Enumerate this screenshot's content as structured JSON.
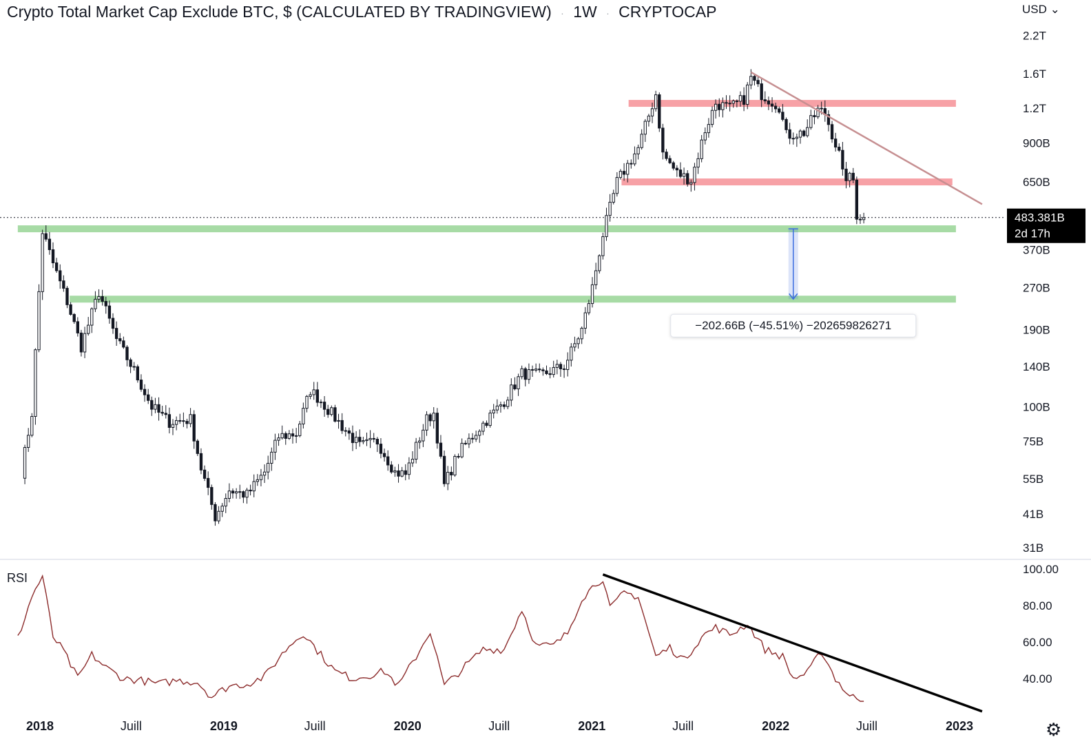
{
  "header": {
    "title": "Crypto Total Market Cap Exclude BTC, $ (CALCULATED BY TRADINGVIEW)",
    "separator": "·",
    "interval": "1W",
    "symbol": "CRYPTOCAP"
  },
  "currency_label": "USD",
  "colors": {
    "up": "#131722",
    "down": "#131722",
    "resistance": "#f7a1a6",
    "support": "#a7dba5",
    "trendline_price": "#c68f91",
    "rsi_line": "#8b2a2a",
    "rsi_trendline": "#000000",
    "measure": "#3b6ce0"
  },
  "price_label": {
    "value": "483.381B",
    "countdown": "2d 17h"
  },
  "measure_label": "−202.66B (−45.51%) −202659826271",
  "rsi_label": "RSI",
  "settings_icon": "gear-icon",
  "chart_data": [
    {
      "type": "candlestick",
      "title": "Crypto Total Market Cap Exclude BTC, $ (CALCULATED BY TRADINGVIEW)",
      "y_scale": "log",
      "y_unit": "B",
      "y_ticks": [
        {
          "label": "2.2T",
          "value": 2200
        },
        {
          "label": "1.6T",
          "value": 1600
        },
        {
          "label": "1.2T",
          "value": 1200
        },
        {
          "label": "900B",
          "value": 900
        },
        {
          "label": "650B",
          "value": 650
        },
        {
          "label": "370B",
          "value": 370
        },
        {
          "label": "270B",
          "value": 270
        },
        {
          "label": "190B",
          "value": 190
        },
        {
          "label": "140B",
          "value": 140
        },
        {
          "label": "100B",
          "value": 100
        },
        {
          "label": "75B",
          "value": 75
        },
        {
          "label": "55B",
          "value": 55
        },
        {
          "label": "41B",
          "value": 41
        },
        {
          "label": "31B",
          "value": 31
        }
      ],
      "x_ticks": [
        {
          "label": "2018",
          "value": "2018-01-01",
          "bold": true
        },
        {
          "label": "Juill",
          "value": "2018-07-01",
          "bold": false
        },
        {
          "label": "2019",
          "value": "2019-01-01",
          "bold": true
        },
        {
          "label": "Juill",
          "value": "2019-07-01",
          "bold": false
        },
        {
          "label": "2020",
          "value": "2020-01-01",
          "bold": true
        },
        {
          "label": "Juill",
          "value": "2020-07-01",
          "bold": false
        },
        {
          "label": "2021",
          "value": "2021-01-01",
          "bold": true
        },
        {
          "label": "Juill",
          "value": "2021-07-01",
          "bold": false
        },
        {
          "label": "2022",
          "value": "2022-01-01",
          "bold": true
        },
        {
          "label": "Juill",
          "value": "2022-07-01",
          "bold": false
        },
        {
          "label": "2023",
          "value": "2023-01-01",
          "bold": true
        }
      ],
      "series": [
        {
          "name": "CRYPTOCAP",
          "points": [
            {
              "x": "2017-11-25",
              "y": 58
            },
            {
              "x": "2017-12-16",
              "y": 95
            },
            {
              "x": "2018-01-06",
              "y": 430
            },
            {
              "x": "2018-01-27",
              "y": 330
            },
            {
              "x": "2018-02-24",
              "y": 240
            },
            {
              "x": "2018-03-24",
              "y": 165
            },
            {
              "x": "2018-04-28",
              "y": 260
            },
            {
              "x": "2018-06-02",
              "y": 175
            },
            {
              "x": "2018-07-07",
              "y": 135
            },
            {
              "x": "2018-08-11",
              "y": 100
            },
            {
              "x": "2018-09-15",
              "y": 88
            },
            {
              "x": "2018-10-27",
              "y": 90
            },
            {
              "x": "2018-11-17",
              "y": 60
            },
            {
              "x": "2018-12-15",
              "y": 40
            },
            {
              "x": "2019-01-12",
              "y": 50
            },
            {
              "x": "2019-02-16",
              "y": 48
            },
            {
              "x": "2019-03-23",
              "y": 58
            },
            {
              "x": "2019-04-20",
              "y": 78
            },
            {
              "x": "2019-05-25",
              "y": 80
            },
            {
              "x": "2019-06-22",
              "y": 115
            },
            {
              "x": "2019-07-13",
              "y": 105
            },
            {
              "x": "2019-08-24",
              "y": 85
            },
            {
              "x": "2019-09-28",
              "y": 72
            },
            {
              "x": "2019-11-02",
              "y": 75
            },
            {
              "x": "2019-12-07",
              "y": 58
            },
            {
              "x": "2019-12-28",
              "y": 57
            },
            {
              "x": "2020-02-08",
              "y": 90
            },
            {
              "x": "2020-02-22",
              "y": 95
            },
            {
              "x": "2020-03-14",
              "y": 52
            },
            {
              "x": "2020-04-11",
              "y": 68
            },
            {
              "x": "2020-05-23",
              "y": 84
            },
            {
              "x": "2020-07-11",
              "y": 105
            },
            {
              "x": "2020-08-15",
              "y": 132
            },
            {
              "x": "2020-09-19",
              "y": 130
            },
            {
              "x": "2020-11-07",
              "y": 140
            },
            {
              "x": "2020-12-12",
              "y": 190
            },
            {
              "x": "2021-01-02",
              "y": 270
            },
            {
              "x": "2021-01-23",
              "y": 420
            },
            {
              "x": "2021-02-20",
              "y": 650
            },
            {
              "x": "2021-04-03",
              "y": 860
            },
            {
              "x": "2021-05-08",
              "y": 1350
            },
            {
              "x": "2021-05-22",
              "y": 820
            },
            {
              "x": "2021-06-19",
              "y": 700
            },
            {
              "x": "2021-07-17",
              "y": 660
            },
            {
              "x": "2021-08-14",
              "y": 1000
            },
            {
              "x": "2021-09-04",
              "y": 1250
            },
            {
              "x": "2021-10-02",
              "y": 1200
            },
            {
              "x": "2021-10-30",
              "y": 1300
            },
            {
              "x": "2021-11-13",
              "y": 1550
            },
            {
              "x": "2021-12-04",
              "y": 1350
            },
            {
              "x": "2022-01-08",
              "y": 1220
            },
            {
              "x": "2022-01-22",
              "y": 960
            },
            {
              "x": "2022-02-26",
              "y": 980
            },
            {
              "x": "2022-03-26",
              "y": 1180
            },
            {
              "x": "2022-04-09",
              "y": 1150
            },
            {
              "x": "2022-05-07",
              "y": 820
            },
            {
              "x": "2022-05-14",
              "y": 690
            },
            {
              "x": "2022-06-04",
              "y": 660
            },
            {
              "x": "2022-06-11",
              "y": 495
            },
            {
              "x": "2022-06-25",
              "y": 483
            }
          ]
        }
      ],
      "annotations": [
        {
          "kind": "resistance",
          "y": 1250,
          "from": "2021-03-15",
          "to": "2022-12-25"
        },
        {
          "kind": "resistance",
          "y": 650,
          "from": "2021-03-01",
          "to": "2022-12-18"
        },
        {
          "kind": "support",
          "y": 440,
          "from": "2017-11-18",
          "to": "2022-12-25"
        },
        {
          "kind": "support",
          "y": 245,
          "from": "2018-03-01",
          "to": "2022-12-25"
        },
        {
          "kind": "trendline",
          "from": {
            "x": "2021-11-13",
            "y": 1620
          },
          "to": {
            "x": "2023-02-15",
            "y": 540
          }
        },
        {
          "kind": "measure",
          "x": "2022-02-05",
          "from": 440,
          "to": 245,
          "label": "−202.66B (−45.51%) −202659826271"
        }
      ],
      "current_price": {
        "value": 483.381,
        "label": "483.381B",
        "countdown": "2d 17h"
      }
    },
    {
      "type": "line",
      "title": "RSI",
      "ylim": [
        20,
        100
      ],
      "y_ticks": [
        {
          "label": "100.00",
          "value": 100
        },
        {
          "label": "80.00",
          "value": 80
        },
        {
          "label": "60.00",
          "value": 60
        },
        {
          "label": "40.00",
          "value": 40
        }
      ],
      "series": [
        {
          "name": "RSI",
          "points": [
            {
              "x": "2017-11-18",
              "y": 62
            },
            {
              "x": "2017-12-16",
              "y": 85
            },
            {
              "x": "2018-01-06",
              "y": 96
            },
            {
              "x": "2018-01-27",
              "y": 63
            },
            {
              "x": "2018-02-17",
              "y": 55
            },
            {
              "x": "2018-03-17",
              "y": 40
            },
            {
              "x": "2018-04-14",
              "y": 53
            },
            {
              "x": "2018-05-12",
              "y": 46
            },
            {
              "x": "2018-06-16",
              "y": 40
            },
            {
              "x": "2018-07-21",
              "y": 39
            },
            {
              "x": "2018-08-25",
              "y": 37
            },
            {
              "x": "2018-09-29",
              "y": 39
            },
            {
              "x": "2018-11-10",
              "y": 38
            },
            {
              "x": "2018-12-08",
              "y": 30
            },
            {
              "x": "2019-01-12",
              "y": 36
            },
            {
              "x": "2019-02-16",
              "y": 37
            },
            {
              "x": "2019-03-23",
              "y": 41
            },
            {
              "x": "2019-04-20",
              "y": 51
            },
            {
              "x": "2019-05-11",
              "y": 58
            },
            {
              "x": "2019-06-08",
              "y": 65
            },
            {
              "x": "2019-07-13",
              "y": 53
            },
            {
              "x": "2019-08-10",
              "y": 44
            },
            {
              "x": "2019-09-14",
              "y": 40
            },
            {
              "x": "2019-10-19",
              "y": 42
            },
            {
              "x": "2019-11-16",
              "y": 44
            },
            {
              "x": "2019-12-14",
              "y": 36
            },
            {
              "x": "2020-01-18",
              "y": 52
            },
            {
              "x": "2020-02-15",
              "y": 66
            },
            {
              "x": "2020-03-14",
              "y": 36
            },
            {
              "x": "2020-04-18",
              "y": 45
            },
            {
              "x": "2020-05-30",
              "y": 56
            },
            {
              "x": "2020-07-11",
              "y": 56
            },
            {
              "x": "2020-08-15",
              "y": 78
            },
            {
              "x": "2020-09-12",
              "y": 58
            },
            {
              "x": "2020-10-17",
              "y": 58
            },
            {
              "x": "2020-11-14",
              "y": 65
            },
            {
              "x": "2020-12-12",
              "y": 84
            },
            {
              "x": "2021-01-09",
              "y": 92
            },
            {
              "x": "2021-01-23",
              "y": 95
            },
            {
              "x": "2021-02-06",
              "y": 78
            },
            {
              "x": "2021-03-06",
              "y": 87
            },
            {
              "x": "2021-04-03",
              "y": 85
            },
            {
              "x": "2021-05-08",
              "y": 52
            },
            {
              "x": "2021-06-05",
              "y": 57
            },
            {
              "x": "2021-07-03",
              "y": 50
            },
            {
              "x": "2021-08-07",
              "y": 63
            },
            {
              "x": "2021-09-04",
              "y": 68
            },
            {
              "x": "2021-10-02",
              "y": 64
            },
            {
              "x": "2021-11-06",
              "y": 70
            },
            {
              "x": "2021-12-11",
              "y": 56
            },
            {
              "x": "2022-01-15",
              "y": 52
            },
            {
              "x": "2022-02-05",
              "y": 40
            },
            {
              "x": "2022-03-05",
              "y": 43
            },
            {
              "x": "2022-04-02",
              "y": 55
            },
            {
              "x": "2022-04-30",
              "y": 40
            },
            {
              "x": "2022-05-28",
              "y": 30
            },
            {
              "x": "2022-06-25",
              "y": 29
            }
          ]
        }
      ],
      "annotations": [
        {
          "kind": "trendline",
          "from": {
            "x": "2021-01-23",
            "y": 97
          },
          "to": {
            "x": "2023-02-15",
            "y": 22
          }
        }
      ]
    }
  ]
}
